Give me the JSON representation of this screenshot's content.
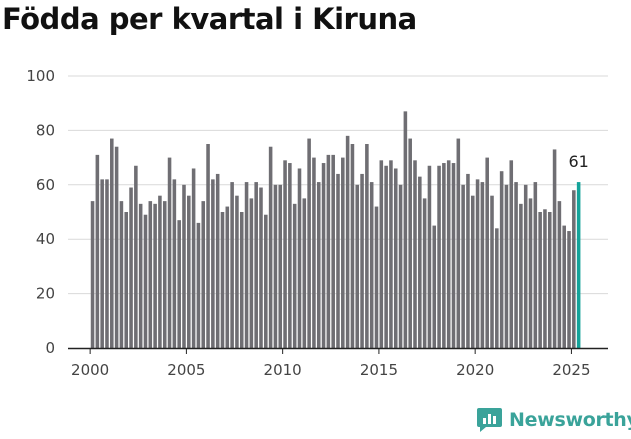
{
  "title": "Födda per kvartal i Kiruna",
  "brand": {
    "name": "Newsworthy",
    "icon": "newsworthy-logo-icon",
    "color": "#3aa39a"
  },
  "chart_data": {
    "type": "bar",
    "title": "Födda per kvartal i Kiruna",
    "xlabel": "",
    "ylabel": "",
    "ylim": [
      0,
      100
    ],
    "yticks": [
      0,
      20,
      40,
      60,
      80,
      100
    ],
    "xticks": [
      2000,
      2005,
      2010,
      2015,
      2020,
      2025
    ],
    "xlim": [
      1998.85,
      2026.9
    ],
    "x_start": 2000.125,
    "x_step": 0.25,
    "grid": "horizontal",
    "bar_color": "#6f6e73",
    "highlight_color": "#14a39a",
    "last_value_label": "61",
    "values": [
      54,
      71,
      62,
      62,
      77,
      74,
      54,
      50,
      59,
      67,
      53,
      49,
      54,
      53,
      56,
      54,
      70,
      62,
      47,
      60,
      56,
      66,
      46,
      54,
      75,
      62,
      64,
      50,
      52,
      61,
      56,
      50,
      61,
      55,
      61,
      59,
      49,
      74,
      60,
      60,
      69,
      68,
      53,
      66,
      55,
      77,
      70,
      61,
      68,
      71,
      71,
      64,
      70,
      78,
      75,
      60,
      64,
      75,
      61,
      52,
      69,
      67,
      69,
      66,
      60,
      87,
      77,
      69,
      63,
      55,
      67,
      45,
      67,
      68,
      69,
      68,
      77,
      60,
      64,
      56,
      62,
      61,
      70,
      56,
      44,
      65,
      60,
      69,
      61,
      53,
      60,
      55,
      61,
      50,
      51,
      50,
      73,
      54,
      45,
      43,
      58,
      61
    ]
  }
}
